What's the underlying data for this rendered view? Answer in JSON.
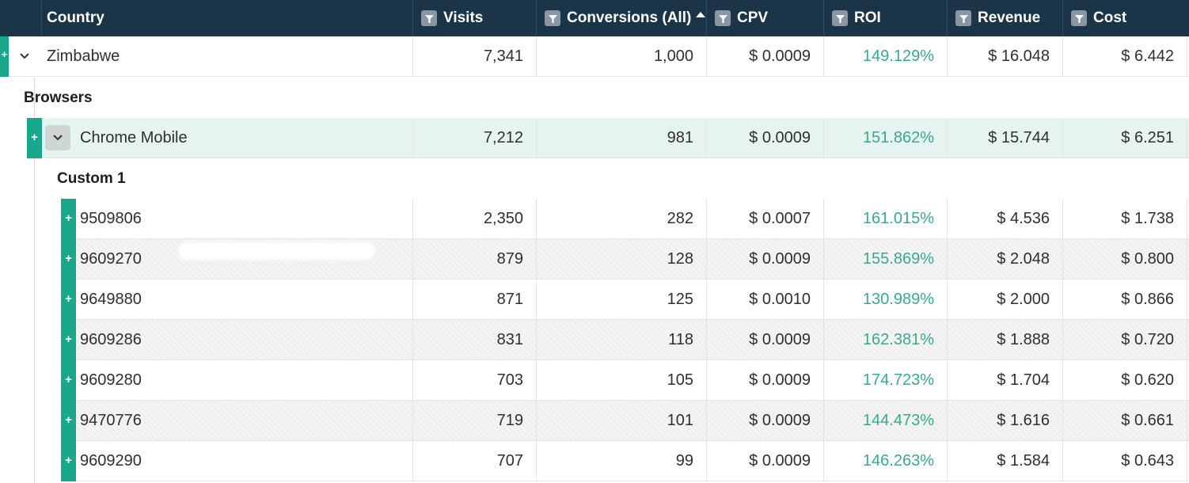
{
  "columns": [
    {
      "label": "Country",
      "filter": false,
      "sorted": false
    },
    {
      "label": "Visits",
      "filter": true,
      "sorted": false
    },
    {
      "label": "Conversions (All)",
      "filter": true,
      "sorted": true
    },
    {
      "label": "CPV",
      "filter": true,
      "sorted": false
    },
    {
      "label": "ROI",
      "filter": true,
      "sorted": false
    },
    {
      "label": "Revenue",
      "filter": true,
      "sorted": false
    },
    {
      "label": "Cost",
      "filter": true,
      "sorted": false
    }
  ],
  "country_row": {
    "name": "Zimbabwe",
    "visits": "7,341",
    "conversions": "1,000",
    "cpv": "$ 0.0009",
    "roi": "149.129%",
    "revenue": "$ 16.048",
    "cost": "$ 6.442"
  },
  "browsers_label": "Browsers",
  "browser_row": {
    "name": "Chrome Mobile",
    "visits": "7,212",
    "conversions": "981",
    "cpv": "$ 0.0009",
    "roi": "151.862%",
    "revenue": "$ 15.744",
    "cost": "$ 6.251"
  },
  "custom_label": "Custom 1",
  "custom_rows": [
    {
      "name": "9509806",
      "visits": "2,350",
      "conversions": "282",
      "cpv": "$ 0.0007",
      "roi": "161.015%",
      "revenue": "$ 4.536",
      "cost": "$ 1.738"
    },
    {
      "name": "9609270",
      "visits": "879",
      "conversions": "128",
      "cpv": "$ 0.0009",
      "roi": "155.869%",
      "revenue": "$ 2.048",
      "cost": "$ 0.800"
    },
    {
      "name": "9649880",
      "visits": "871",
      "conversions": "125",
      "cpv": "$ 0.0010",
      "roi": "130.989%",
      "revenue": "$ 2.000",
      "cost": "$ 0.866"
    },
    {
      "name": "9609286",
      "visits": "831",
      "conversions": "118",
      "cpv": "$ 0.0009",
      "roi": "162.381%",
      "revenue": "$ 1.888",
      "cost": "$ 0.720"
    },
    {
      "name": "9609280",
      "visits": "703",
      "conversions": "105",
      "cpv": "$ 0.0009",
      "roi": "174.723%",
      "revenue": "$ 1.704",
      "cost": "$ 0.620"
    },
    {
      "name": "9470776",
      "visits": "719",
      "conversions": "101",
      "cpv": "$ 0.0009",
      "roi": "144.473%",
      "revenue": "$ 1.616",
      "cost": "$ 0.661"
    },
    {
      "name": "9609290",
      "visits": "707",
      "conversions": "99",
      "cpv": "$ 0.0009",
      "roi": "146.263%",
      "revenue": "$ 1.584",
      "cost": "$ 0.643"
    }
  ],
  "expand_symbol": "+",
  "colors": {
    "header_bg": "#1c3447",
    "accent_green": "#1aa88c",
    "roi_text": "#3aa890",
    "selected_row": "#e5f4f1"
  }
}
